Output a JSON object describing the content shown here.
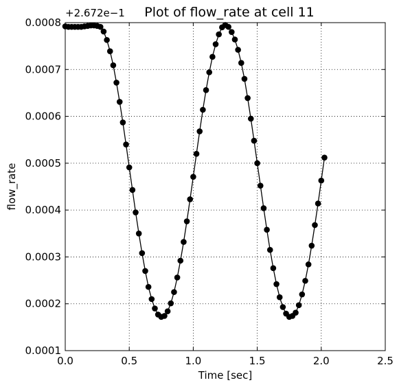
{
  "chart_data": {
    "type": "line",
    "title": "Plot of flow_rate at cell 11",
    "xlabel": "Time [sec]",
    "ylabel": "flow_rate",
    "offset_label": "+2.672e−1",
    "xlim": [
      0.0,
      2.5
    ],
    "ylim": [
      0.0001,
      0.0008
    ],
    "x_ticks": [
      {
        "value": 0.0,
        "label": "0.0"
      },
      {
        "value": 0.5,
        "label": "0.5"
      },
      {
        "value": 1.0,
        "label": "1.0"
      },
      {
        "value": 1.5,
        "label": "1.5"
      },
      {
        "value": 2.0,
        "label": "2.0"
      },
      {
        "value": 2.5,
        "label": "2.5"
      }
    ],
    "y_ticks": [
      {
        "value": 0.0001,
        "label": "0.0001"
      },
      {
        "value": 0.0002,
        "label": "0.0002"
      },
      {
        "value": 0.0003,
        "label": "0.0003"
      },
      {
        "value": 0.0004,
        "label": "0.0004"
      },
      {
        "value": 0.0005,
        "label": "0.0005"
      },
      {
        "value": 0.0006,
        "label": "0.0006"
      },
      {
        "value": 0.0007,
        "label": "0.0007"
      },
      {
        "value": 0.0008,
        "label": "0.0008"
      }
    ],
    "grid": true,
    "line_color": "#000000",
    "marker_color": "#000000",
    "marker": "circle",
    "series": [
      {
        "x": [
          0.0,
          0.025,
          0.05,
          0.075,
          0.1,
          0.125,
          0.15,
          0.175,
          0.2,
          0.225,
          0.25,
          0.275,
          0.3,
          0.325,
          0.35,
          0.375,
          0.4,
          0.425,
          0.45,
          0.475,
          0.5,
          0.525,
          0.55,
          0.575,
          0.6,
          0.625,
          0.65,
          0.675,
          0.7,
          0.725,
          0.75,
          0.775,
          0.8,
          0.825,
          0.85,
          0.875,
          0.9,
          0.925,
          0.95,
          0.975,
          1.0,
          1.025,
          1.05,
          1.075,
          1.1,
          1.125,
          1.15,
          1.175,
          1.2,
          1.225,
          1.25,
          1.275,
          1.3,
          1.325,
          1.35,
          1.375,
          1.4,
          1.425,
          1.45,
          1.475,
          1.5,
          1.525,
          1.55,
          1.575,
          1.6,
          1.625,
          1.65,
          1.675,
          1.7,
          1.725,
          1.75,
          1.775,
          1.8,
          1.825,
          1.85,
          1.875,
          1.9,
          1.925,
          1.95,
          1.975,
          2.0,
          2.025
        ],
        "y": [
          0.000792,
          0.000791,
          0.000791,
          0.000791,
          0.000791,
          0.000791,
          0.000792,
          0.000793,
          0.000794,
          0.000794,
          0.000793,
          0.000791,
          0.000781,
          0.000763,
          0.000739,
          0.000709,
          0.000672,
          0.000631,
          0.000587,
          0.00054,
          0.000491,
          0.000443,
          0.000395,
          0.00035,
          0.000308,
          0.00027,
          0.000236,
          0.00021,
          0.00019,
          0.000177,
          0.000172,
          0.000174,
          0.000184,
          0.000201,
          0.000225,
          0.000256,
          0.000292,
          0.000332,
          0.000376,
          0.000423,
          0.000471,
          0.00052,
          0.000568,
          0.000614,
          0.000656,
          0.000694,
          0.000727,
          0.000754,
          0.000775,
          0.00079,
          0.000795,
          0.000791,
          0.00078,
          0.000764,
          0.000742,
          0.000714,
          0.00068,
          0.000639,
          0.000595,
          0.000548,
          0.0005,
          0.000452,
          0.000404,
          0.000358,
          0.000315,
          0.000276,
          0.000242,
          0.000214,
          0.000193,
          0.000179,
          0.000172,
          0.000174,
          0.000181,
          0.000197,
          0.00022,
          0.000249,
          0.000284,
          0.000324,
          0.000368,
          0.000414,
          0.000463,
          0.000512
        ]
      }
    ]
  }
}
